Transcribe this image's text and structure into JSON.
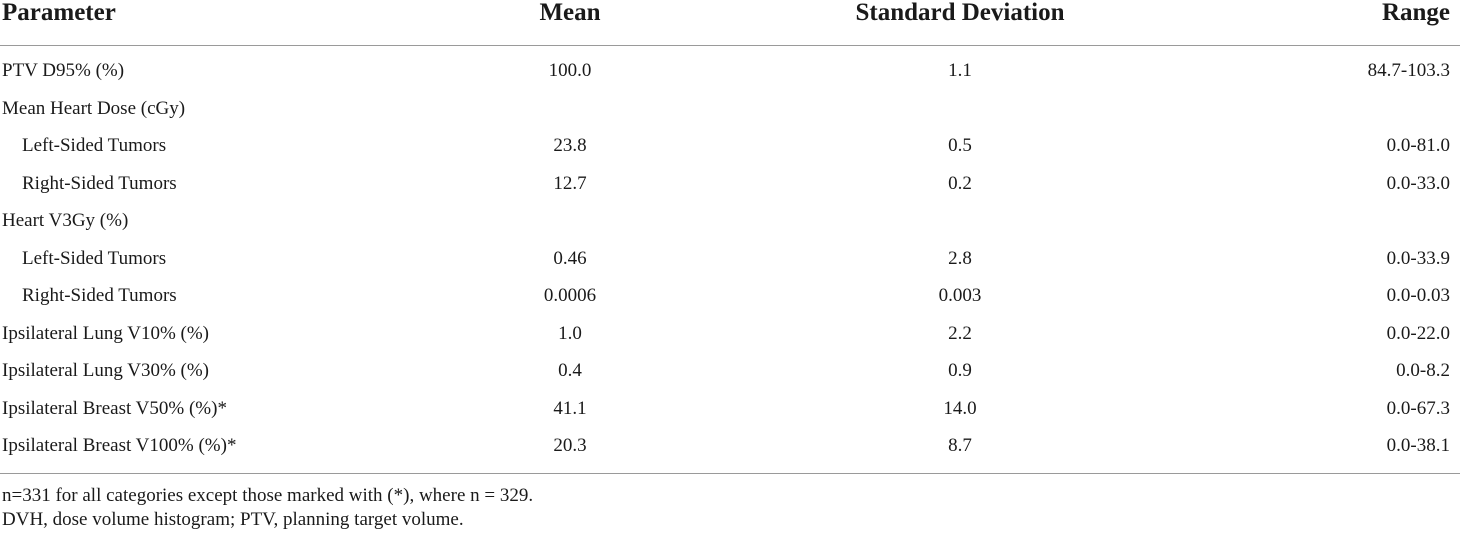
{
  "table": {
    "headers": [
      "Parameter",
      "Mean",
      "Standard Deviation",
      "Range"
    ],
    "rows": [
      {
        "parameter": "PTV D95% (%)",
        "mean": "100.0",
        "sd": "1.1",
        "range": "84.7-103.3",
        "indent": false
      },
      {
        "parameter": "Mean Heart Dose (cGy)",
        "mean": "",
        "sd": "",
        "range": "",
        "indent": false
      },
      {
        "parameter": "Left-Sided Tumors",
        "mean": "23.8",
        "sd": "0.5",
        "range": "0.0-81.0",
        "indent": true
      },
      {
        "parameter": "Right-Sided Tumors",
        "mean": "12.7",
        "sd": "0.2",
        "range": "0.0-33.0",
        "indent": true
      },
      {
        "parameter": "Heart V3Gy (%)",
        "mean": "",
        "sd": "",
        "range": "",
        "indent": false
      },
      {
        "parameter": "Left-Sided Tumors",
        "mean": "0.46",
        "sd": "2.8",
        "range": "0.0-33.9",
        "indent": true
      },
      {
        "parameter": "Right-Sided Tumors",
        "mean": "0.0006",
        "sd": "0.003",
        "range": "0.0-0.03",
        "indent": true
      },
      {
        "parameter": "Ipsilateral Lung V10% (%)",
        "mean": "1.0",
        "sd": "2.2",
        "range": "0.0-22.0",
        "indent": false
      },
      {
        "parameter": "Ipsilateral Lung V30% (%)",
        "mean": "0.4",
        "sd": "0.9",
        "range": "0.0-8.2",
        "indent": false
      },
      {
        "parameter": "Ipsilateral Breast V50% (%)*",
        "mean": "41.1",
        "sd": "14.0",
        "range": "0.0-67.3",
        "indent": false
      },
      {
        "parameter": "Ipsilateral Breast V100% (%)*",
        "mean": "20.3",
        "sd": "8.7",
        "range": "0.0-38.1",
        "indent": false
      }
    ]
  },
  "footnotes": [
    "n=331 for all categories except those marked with (*), where n = 329.",
    "DVH, dose volume histogram; PTV, planning target volume."
  ]
}
